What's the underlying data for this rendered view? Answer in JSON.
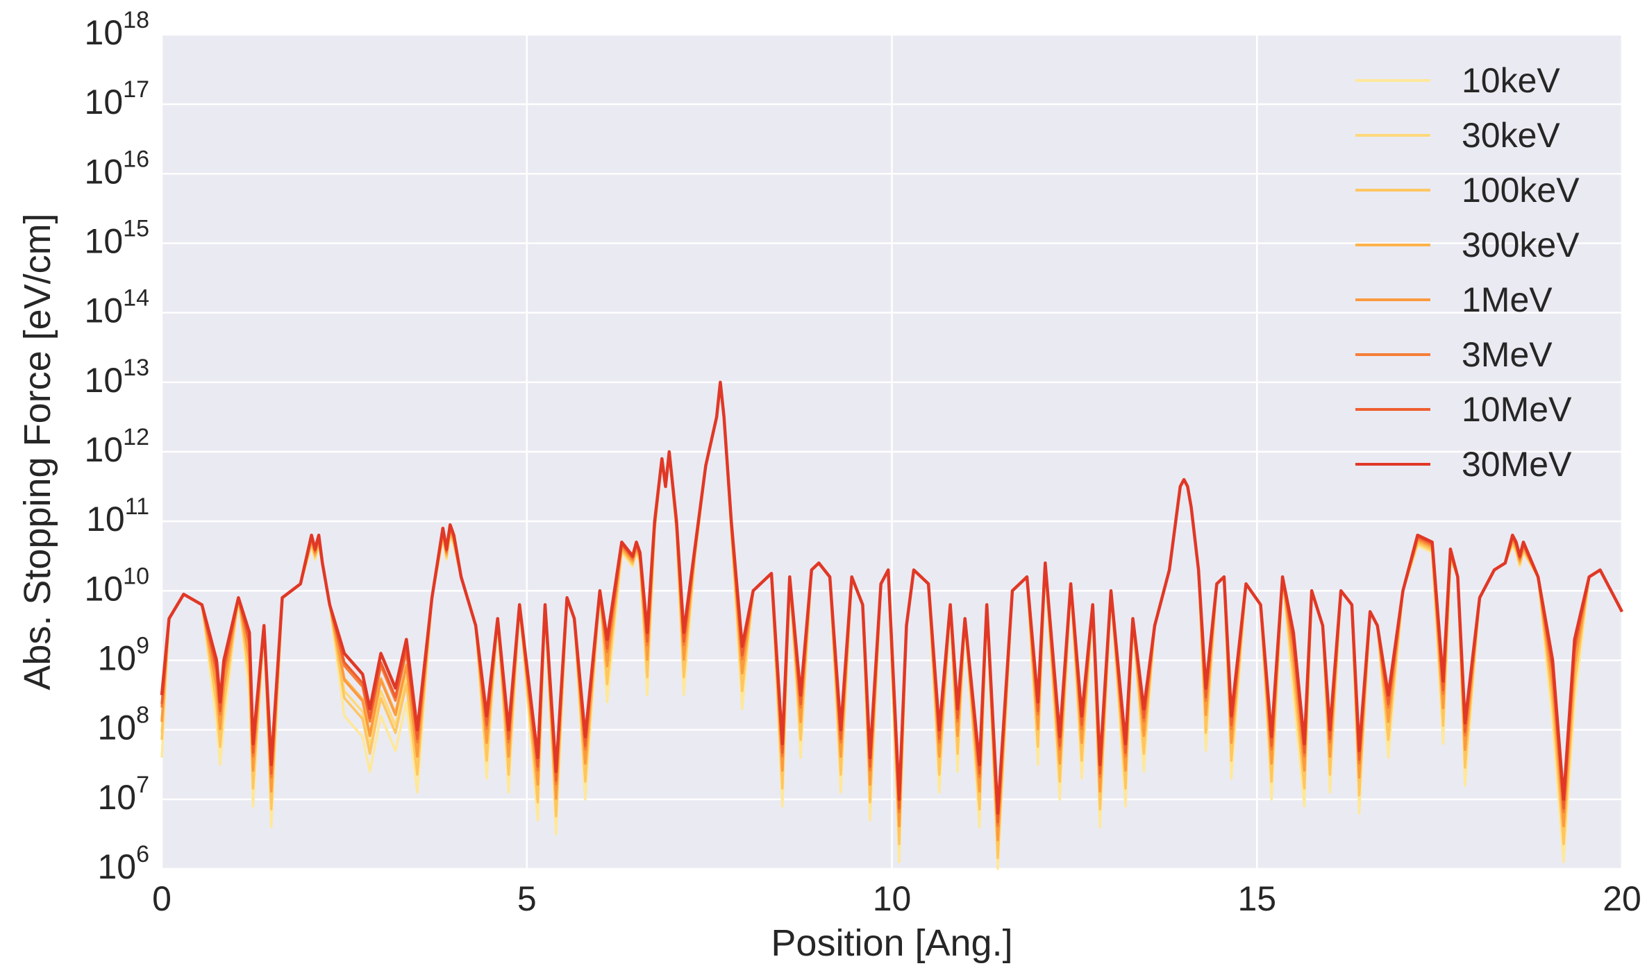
{
  "chart_data": {
    "type": "line",
    "title": "",
    "xlabel": "Position [Ang.]",
    "ylabel": "Abs. Stopping Force [eV/cm]",
    "xlim": [
      0,
      20
    ],
    "ylim": [
      1000000.0,
      1e+18
    ],
    "yscale": "log",
    "grid": true,
    "legend_position": "top-right",
    "background_color": "#eaeaf2",
    "x_ticks": [
      "0",
      "5",
      "10",
      "15",
      "20"
    ],
    "y_ticks": [
      {
        "base": "10",
        "exp": "6"
      },
      {
        "base": "10",
        "exp": "7"
      },
      {
        "base": "10",
        "exp": "8"
      },
      {
        "base": "10",
        "exp": "9"
      },
      {
        "base": "10",
        "exp": "10"
      },
      {
        "base": "10",
        "exp": "11"
      },
      {
        "base": "10",
        "exp": "12"
      },
      {
        "base": "10",
        "exp": "13"
      },
      {
        "base": "10",
        "exp": "14"
      },
      {
        "base": "10",
        "exp": "15"
      },
      {
        "base": "10",
        "exp": "16"
      },
      {
        "base": "10",
        "exp": "17"
      },
      {
        "base": "10",
        "exp": "18"
      }
    ],
    "baseline_profile": {
      "x": [
        0.0,
        0.1,
        0.3,
        0.55,
        0.75,
        0.8,
        0.85,
        1.05,
        1.2,
        1.25,
        1.4,
        1.5,
        1.65,
        1.9,
        2.05,
        2.1,
        2.15,
        2.2,
        2.3,
        2.5,
        2.75,
        2.85,
        3.0,
        3.2,
        3.35,
        3.5,
        3.7,
        3.85,
        3.9,
        3.95,
        4.0,
        4.1,
        4.3,
        4.45,
        4.6,
        4.75,
        4.9,
        5.15,
        5.25,
        5.4,
        5.55,
        5.65,
        5.8,
        6.0,
        6.1,
        6.3,
        6.45,
        6.5,
        6.55,
        6.65,
        6.75,
        6.85,
        6.9,
        6.95,
        7.05,
        7.15,
        7.3,
        7.45,
        7.6,
        7.65,
        7.7,
        7.8,
        7.95,
        8.1,
        8.35,
        8.5,
        8.6,
        8.75,
        8.9,
        9.0,
        9.15,
        9.3,
        9.45,
        9.6,
        9.7,
        9.85,
        9.95,
        10.1,
        10.2,
        10.3,
        10.5,
        10.65,
        10.8,
        10.9,
        11.0,
        11.2,
        11.3,
        11.45,
        11.65,
        11.85,
        12.0,
        12.1,
        12.3,
        12.45,
        12.6,
        12.75,
        12.85,
        13.0,
        13.2,
        13.3,
        13.45,
        13.6,
        13.8,
        13.95,
        14.0,
        14.05,
        14.1,
        14.2,
        14.3,
        14.45,
        14.55,
        14.65,
        14.85,
        15.05,
        15.2,
        15.35,
        15.5,
        15.65,
        15.75,
        15.9,
        16.0,
        16.15,
        16.3,
        16.4,
        16.55,
        16.65,
        16.8,
        17.0,
        17.2,
        17.4,
        17.55,
        17.65,
        17.75,
        17.85,
        18.05,
        18.25,
        18.4,
        18.5,
        18.55,
        18.6,
        18.65,
        18.85,
        19.05,
        19.2,
        19.35,
        19.55,
        19.7,
        19.8,
        19.9,
        20.0
      ],
      "log10_y": [
        8.5,
        9.6,
        9.95,
        9.8,
        9.0,
        8.4,
        9.0,
        9.9,
        9.4,
        7.8,
        9.5,
        7.5,
        9.9,
        10.1,
        10.8,
        10.6,
        10.8,
        10.4,
        9.8,
        9.1,
        8.8,
        8.3,
        9.1,
        8.6,
        9.3,
        8.0,
        9.9,
        10.9,
        10.6,
        10.95,
        10.8,
        10.2,
        9.5,
        8.2,
        9.6,
        8.0,
        9.8,
        7.6,
        9.8,
        7.4,
        9.9,
        9.6,
        7.9,
        10.0,
        9.3,
        10.7,
        10.5,
        10.7,
        10.55,
        9.4,
        11.0,
        11.9,
        11.5,
        12.0,
        11.0,
        9.4,
        10.6,
        11.8,
        12.5,
        13.0,
        12.5,
        11.0,
        9.2,
        10.0,
        10.25,
        7.8,
        10.2,
        8.5,
        10.3,
        10.4,
        10.2,
        8.0,
        10.2,
        9.8,
        7.6,
        10.1,
        10.3,
        7.0,
        9.5,
        10.3,
        10.1,
        8.0,
        9.8,
        8.3,
        9.6,
        7.5,
        9.8,
        6.8,
        10.0,
        10.2,
        8.4,
        10.4,
        7.9,
        10.1,
        8.2,
        9.8,
        7.5,
        10.0,
        7.8,
        9.6,
        8.3,
        9.5,
        10.3,
        11.5,
        11.6,
        11.5,
        11.2,
        10.3,
        8.6,
        10.1,
        10.2,
        8.2,
        10.1,
        9.8,
        7.9,
        10.2,
        9.4,
        7.8,
        10.0,
        9.5,
        8.0,
        10.0,
        9.8,
        7.7,
        9.7,
        9.5,
        8.5,
        10.0,
        10.8,
        10.7,
        8.7,
        10.6,
        10.2,
        8.1,
        9.9,
        10.3,
        10.4,
        10.8,
        10.7,
        10.5,
        10.7,
        10.2,
        9.0,
        7.0,
        9.3,
        10.2,
        10.3,
        10.1,
        9.9,
        9.7
      ]
    },
    "series": [
      {
        "name": "10keV",
        "color": "#fee89a"
      },
      {
        "name": "30keV",
        "color": "#fed97a"
      },
      {
        "name": "100keV",
        "color": "#fec661"
      },
      {
        "name": "300keV",
        "color": "#fdb34d"
      },
      {
        "name": "1MeV",
        "color": "#fb9a3e"
      },
      {
        "name": "3MeV",
        "color": "#f67e38"
      },
      {
        "name": "10MeV",
        "color": "#ef5e2f"
      },
      {
        "name": "30MeV",
        "color": "#e03826"
      }
    ]
  }
}
